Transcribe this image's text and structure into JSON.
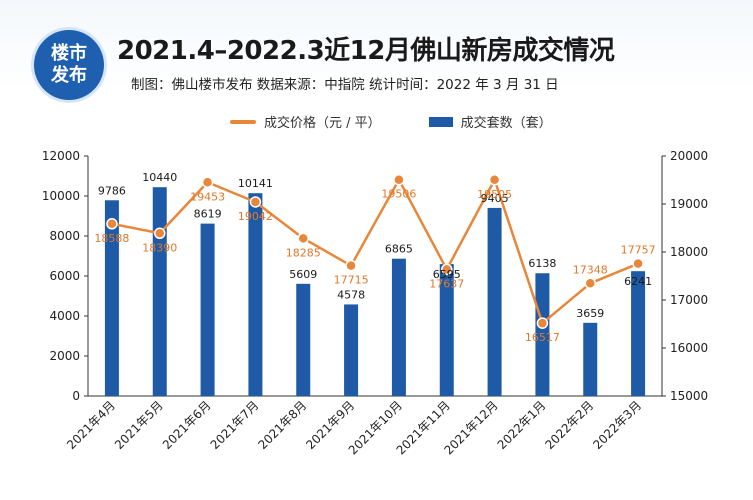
{
  "logo": {
    "line1": "楼市",
    "line2": "发布"
  },
  "header": {
    "title": "2021.4–2022.3近12月佛山新房成交情况",
    "subtitle": "制图：佛山楼市发布  数据来源：中指院  统计时间：2022 年 3 月 31 日"
  },
  "legend": {
    "line_label": "成交价格（元 / 平）",
    "bar_label": "成交套数（套）"
  },
  "colors": {
    "bar": "#1f5aa6",
    "line": "#e8873a",
    "axis": "#333333",
    "accent": "#1e5fb0"
  },
  "chart_data": {
    "type": "bar+line",
    "categories": [
      "2021年4月",
      "2021年5月",
      "2021年6月",
      "2021年7月",
      "2021年8月",
      "2021年9月",
      "2021年10月",
      "2021年11月",
      "2021年12月",
      "2022年1月",
      "2022年2月",
      "2022年3月"
    ],
    "series": [
      {
        "name": "成交套数（套）",
        "type": "bar",
        "axis": "left",
        "values": [
          9786,
          10440,
          8619,
          10141,
          5609,
          4578,
          6865,
          6595,
          9405,
          6138,
          3659,
          6241
        ]
      },
      {
        "name": "成交价格（元 / 平）",
        "type": "line",
        "axis": "right",
        "values": [
          18588,
          18390,
          19453,
          19042,
          18285,
          17715,
          19506,
          17637,
          19505,
          16517,
          17348,
          17757
        ]
      }
    ],
    "y_left": {
      "min": 0,
      "max": 12000,
      "ticks": [
        0,
        2000,
        4000,
        6000,
        8000,
        10000,
        12000
      ]
    },
    "y_right": {
      "min": 15000,
      "max": 20000,
      "ticks": [
        15000,
        16000,
        17000,
        18000,
        19000,
        20000
      ]
    },
    "legend_position": "top-center",
    "grid": false
  }
}
